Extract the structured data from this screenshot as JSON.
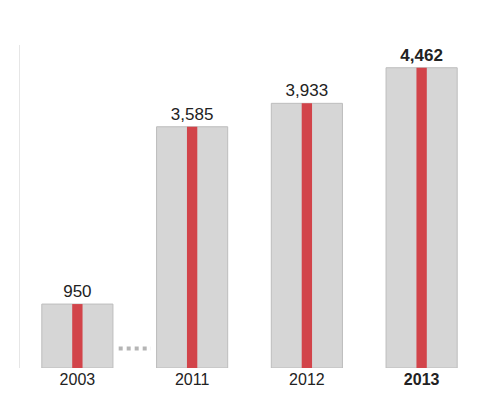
{
  "chart_data": {
    "type": "bar",
    "categories": [
      "2003",
      "2011",
      "2012",
      "2013"
    ],
    "values": [
      950,
      3585,
      3933,
      4462
    ],
    "value_labels": [
      "950",
      "3,585",
      "3,933",
      "4,462"
    ],
    "data_labels": true,
    "tick_labels": "x",
    "color": "#d6d6d6",
    "ylim": [
      0,
      4800
    ],
    "grid": false
  }
}
